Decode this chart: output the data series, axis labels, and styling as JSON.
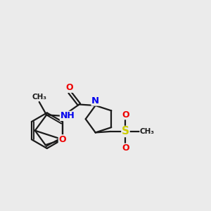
{
  "bg_color": "#ebebeb",
  "bond_color": "#1a1a1a",
  "N_color": "#0000ee",
  "O_color": "#ee0000",
  "S_color": "#cccc00",
  "line_width": 1.6,
  "fig_size": [
    3.0,
    3.0
  ],
  "dpi": 100,
  "xlim": [
    0,
    10
  ],
  "ylim": [
    0,
    10
  ]
}
